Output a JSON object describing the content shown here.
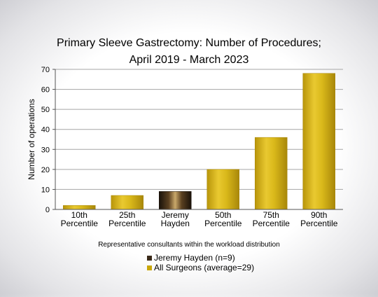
{
  "chart_data": {
    "type": "bar",
    "title": [
      "Primary Sleeve Gastrectomy: Number of Procedures;",
      "April 2019 - March 2023"
    ],
    "ylabel": "Number of operations",
    "xlabel": "Representative consultants within the workload distribution",
    "ylim": [
      0,
      70
    ],
    "yticks": [
      0,
      10,
      20,
      30,
      40,
      50,
      60,
      70
    ],
    "grid": true,
    "categories": [
      [
        "10th",
        "Percentile"
      ],
      [
        "25th",
        "Percentile"
      ],
      [
        "Jeremy",
        "Hayden"
      ],
      [
        "50th",
        "Percentile"
      ],
      [
        "75th",
        "Percentile"
      ],
      [
        "90th",
        "Percentile"
      ]
    ],
    "values": [
      2,
      7,
      9,
      20,
      36,
      68
    ],
    "highlight_index": 2,
    "colors": {
      "all_surgeons": "#c9a70a",
      "jeremy_hayden": "#3a2a1a",
      "grid": "#a6a6a6",
      "axis": "#555555"
    },
    "legend": {
      "placement": "bottom-center",
      "items": [
        {
          "label": "Jeremy Hayden (n=9)",
          "color_key": "jeremy_hayden"
        },
        {
          "label": "All Surgeons (average=29)",
          "color_key": "all_surgeons"
        }
      ]
    }
  }
}
